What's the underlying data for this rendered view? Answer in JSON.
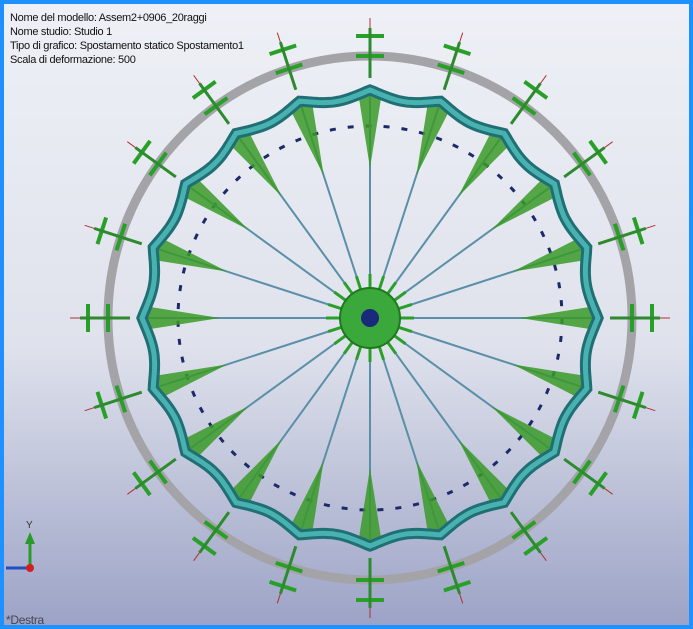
{
  "info": {
    "model_name": "Nome del modello: Assem2+0906_20raggi",
    "study_name": "Nome studio: Studio 1",
    "plot_type": "Tipo di grafico: Spostamento statico Spostamento1",
    "deformation_scale": "Scala di deformazione: 500"
  },
  "triad": {
    "axis_label": "Y"
  },
  "view": {
    "label": "*Destra"
  }
}
